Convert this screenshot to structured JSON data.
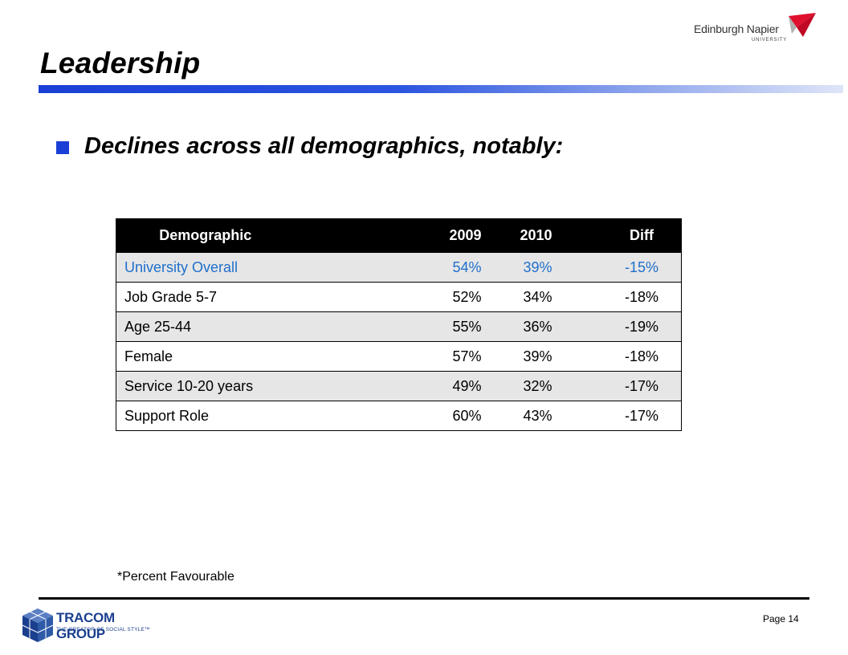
{
  "header": {
    "title": "Leadership",
    "logo": {
      "name": "Edinburgh Napier",
      "sub": "UNIVERSITY",
      "accent_color": "#e0102f"
    },
    "rule_color": "#1a3fd6"
  },
  "bullet": {
    "text": "Declines across all demographics, notably:",
    "color": "#1a3fd6"
  },
  "table": {
    "columns": [
      "Demographic",
      "2009",
      "2010",
      "Diff"
    ],
    "rows": [
      {
        "demographic": "University Overall",
        "y2009": "54%",
        "y2010": "39%",
        "diff": "-15%"
      },
      {
        "demographic": "Job Grade 5-7",
        "y2009": "52%",
        "y2010": "34%",
        "diff": "-18%"
      },
      {
        "demographic": "Age 25-44",
        "y2009": "55%",
        "y2010": "36%",
        "diff": "-19%"
      },
      {
        "demographic": "Female",
        "y2009": "57%",
        "y2010": "39%",
        "diff": "-18%"
      },
      {
        "demographic": "Service 10-20 years",
        "y2009": "49%",
        "y2010": "32%",
        "diff": "-17%"
      },
      {
        "demographic": "Support Role",
        "y2009": "60%",
        "y2010": "43%",
        "diff": "-17%"
      }
    ],
    "highlight_color": "#1f6fcc"
  },
  "footnote": "*Percent Favourable",
  "footer": {
    "logo_name": "TRACOM GROUP",
    "logo_tagline": "THE CREATOR OF SOCIAL STYLE™",
    "page_label": "Page 14"
  }
}
